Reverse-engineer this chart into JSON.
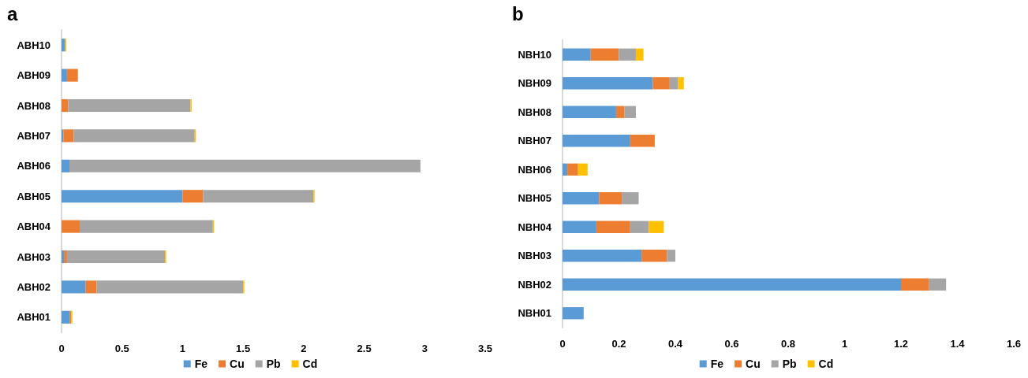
{
  "chart_data": [
    {
      "type": "bar",
      "title": "a",
      "orientation": "horizontal",
      "stacked": true,
      "categories": [
        "ABH10",
        "ABH09",
        "ABH08",
        "ABH07",
        "ABH06",
        "ABH05",
        "ABH04",
        "ABH03",
        "ABH02",
        "ABH01"
      ],
      "series": [
        {
          "name": "Fe",
          "color": "#5b9bd5",
          "values": [
            0.03,
            0.045,
            0,
            0.015,
            0.065,
            1.0,
            0,
            0.02,
            0.2,
            0.07
          ]
        },
        {
          "name": "Cu",
          "color": "#ed7d31",
          "values": [
            0,
            0.09,
            0.055,
            0.085,
            0,
            0.17,
            0.15,
            0.025,
            0.09,
            0.01
          ]
        },
        {
          "name": "Pb",
          "color": "#a5a5a5",
          "values": [
            0,
            0,
            1.01,
            1.0,
            2.9,
            0.91,
            1.1,
            0.81,
            1.21,
            0
          ]
        },
        {
          "name": "Cd",
          "color": "#ffc000",
          "values": [
            0.01,
            0,
            0.01,
            0.01,
            0,
            0.01,
            0.01,
            0.01,
            0.01,
            0.01
          ]
        }
      ],
      "xlim": [
        0,
        3.5
      ],
      "xticks": [
        0,
        0.5,
        1,
        1.5,
        2,
        2.5,
        3,
        3.5
      ],
      "grid": false,
      "legend": "bottom"
    },
    {
      "type": "bar",
      "title": "b",
      "orientation": "horizontal",
      "stacked": true,
      "categories": [
        "NBH10",
        "NBH09",
        "NBH08",
        "NBH07",
        "NBH06",
        "NBH05",
        "NBH04",
        "NBH03",
        "NBH02",
        "NBH01"
      ],
      "series": [
        {
          "name": "Fe",
          "color": "#5b9bd5",
          "values": [
            0.1,
            0.32,
            0.19,
            0.24,
            0.017,
            0.13,
            0.12,
            0.28,
            1.2,
            0.075
          ]
        },
        {
          "name": "Cu",
          "color": "#ed7d31",
          "values": [
            0.1,
            0.06,
            0.03,
            0.087,
            0.038,
            0.08,
            0.12,
            0.09,
            0.1,
            0
          ]
        },
        {
          "name": "Pb",
          "color": "#a5a5a5",
          "values": [
            0.06,
            0.03,
            0.04,
            0,
            0,
            0.06,
            0.066,
            0.03,
            0.06,
            0
          ]
        },
        {
          "name": "Cd",
          "color": "#ffc000",
          "values": [
            0.027,
            0.02,
            0,
            0,
            0.034,
            0,
            0.053,
            0,
            0,
            0
          ]
        }
      ],
      "xlim": [
        0,
        1.6
      ],
      "xticks": [
        0,
        0.2,
        0.4,
        0.6,
        0.8,
        1,
        1.2,
        1.4,
        1.6
      ],
      "grid": false,
      "legend": "bottom"
    }
  ]
}
